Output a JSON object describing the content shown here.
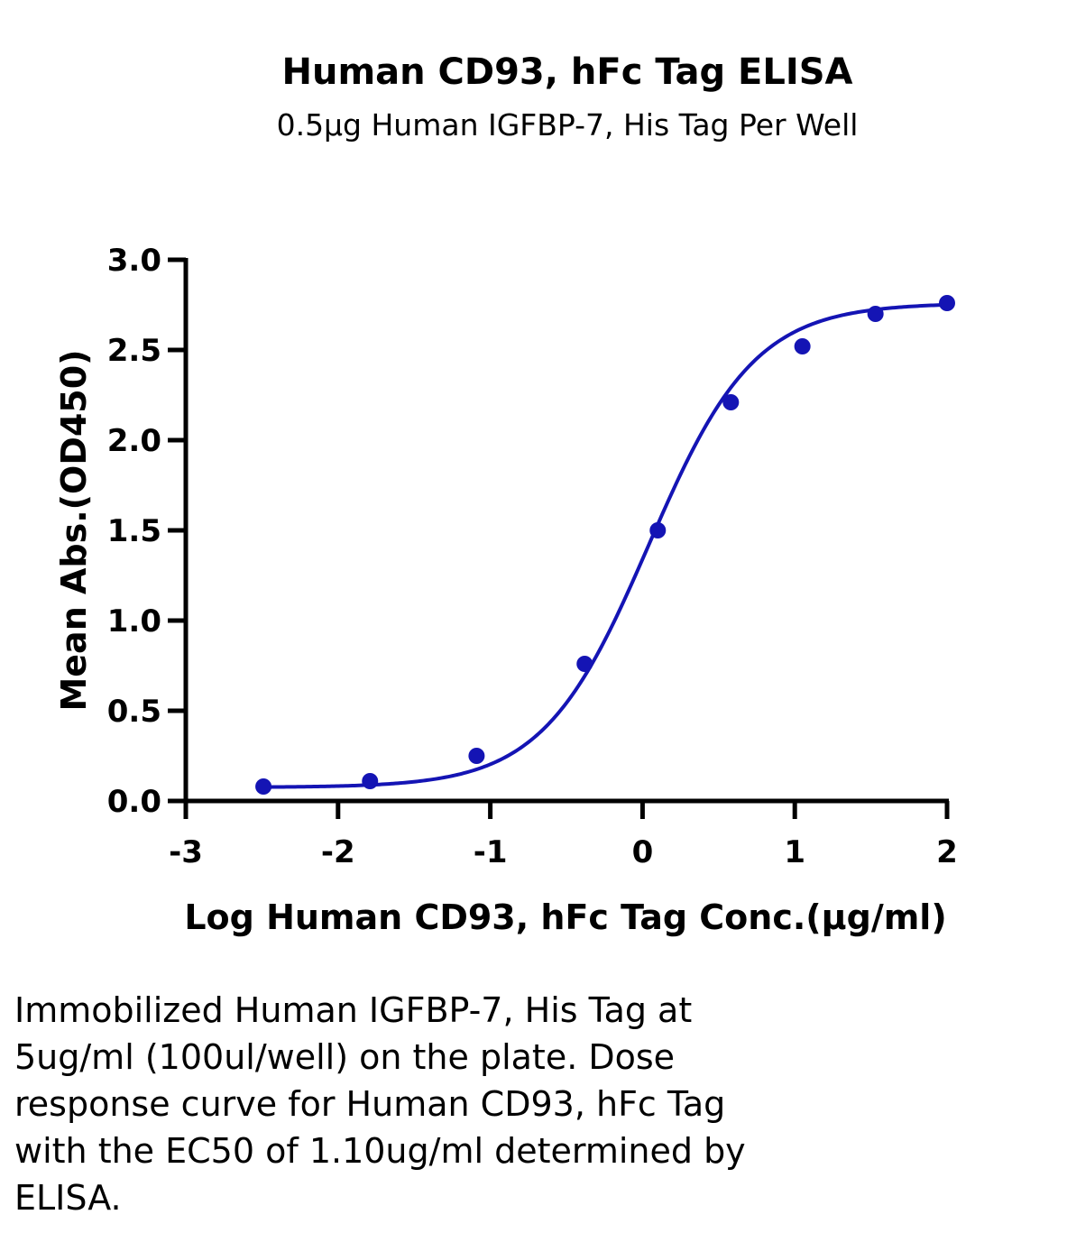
{
  "chart_data": {
    "type": "scatter",
    "title": "Human CD93, hFc Tag ELISA",
    "subtitle": "0.5µg Human IGFBP-7, His Tag Per Well",
    "xlabel": "Log Human CD93, hFc Tag Conc.(µg/ml)",
    "ylabel": "Mean Abs.(OD450)",
    "xlim": [
      -3,
      2
    ],
    "ylim": [
      0,
      3
    ],
    "x_ticks": [
      "-3",
      "-2",
      "-1",
      "0",
      "1",
      "2"
    ],
    "y_ticks": [
      "0.0",
      "0.5",
      "1.0",
      "1.5",
      "2.0",
      "2.5",
      "3.0"
    ],
    "grid": false,
    "color": "#1414b4",
    "series": [
      {
        "x": [
          -2.49,
          -1.79,
          -1.09,
          -0.38,
          0.1,
          0.58,
          1.05,
          1.53,
          2.0
        ],
        "y": [
          0.08,
          0.11,
          0.25,
          0.76,
          1.5,
          2.21,
          2.52,
          2.7,
          2.76
        ]
      }
    ],
    "fit": {
      "model": "4PL",
      "bottom": 0.075,
      "top": 2.76,
      "log_ec50": 0.04,
      "hill": 1.25
    }
  },
  "caption": {
    "lines": [
      "Immobilized Human IGFBP-7, His Tag at",
      "5ug/ml (100ul/well) on the plate. Dose",
      "response curve for Human CD93, hFc Tag",
      "with the EC50 of 1.10ug/ml determined by",
      "ELISA."
    ]
  }
}
